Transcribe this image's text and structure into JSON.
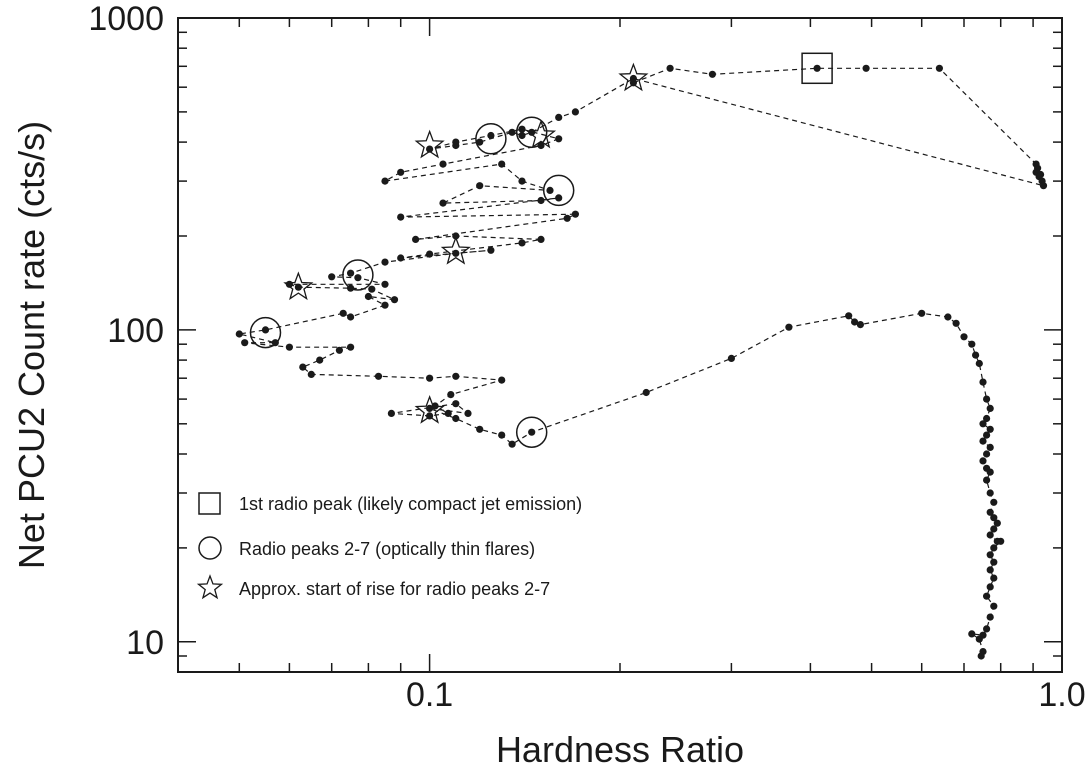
{
  "chart_data": {
    "type": "scatter",
    "xlabel": "Hardness Ratio",
    "ylabel": "Net PCU2 Count rate (cts/s)",
    "xscale": "log",
    "yscale": "log",
    "xlim": [
      0.04,
      1.0
    ],
    "ylim": [
      8,
      1000
    ],
    "x_ticks": [
      {
        "value": 0.1,
        "label": "0.1"
      },
      {
        "value": 1.0,
        "label": "1.0"
      }
    ],
    "y_ticks": [
      {
        "value": 10,
        "label": "10"
      },
      {
        "value": 100,
        "label": "100"
      },
      {
        "value": 1000,
        "label": "1000"
      }
    ],
    "legend_position": "bottom-left",
    "legend": [
      {
        "marker": "square",
        "label": "1st radio peak (likely compact jet emission)"
      },
      {
        "marker": "circle",
        "label": "Radio peaks 2-7 (optically thin flares)"
      },
      {
        "marker": "star",
        "label": "Approx. start of rise for radio peaks 2-7"
      }
    ],
    "colors": {
      "points": "#1a1a1a",
      "line": "#1a1a1a",
      "frame": "#1a1a1a"
    },
    "track": [
      [
        0.21,
        620
      ],
      [
        0.24,
        690
      ],
      [
        0.28,
        660
      ],
      [
        0.41,
        690
      ],
      [
        0.49,
        690
      ],
      [
        0.64,
        690
      ],
      [
        0.91,
        340
      ],
      [
        0.915,
        330
      ],
      [
        0.91,
        320
      ],
      [
        0.92,
        310
      ],
      [
        0.93,
        300
      ],
      [
        0.925,
        315
      ],
      [
        0.935,
        290
      ],
      [
        0.21,
        640
      ],
      [
        0.17,
        500
      ],
      [
        0.16,
        480
      ],
      [
        0.145,
        430
      ],
      [
        0.14,
        420
      ],
      [
        0.135,
        430
      ],
      [
        0.12,
        400
      ],
      [
        0.11,
        390
      ],
      [
        0.1,
        380
      ],
      [
        0.11,
        400
      ],
      [
        0.125,
        420
      ],
      [
        0.14,
        440
      ],
      [
        0.16,
        410
      ],
      [
        0.15,
        390
      ],
      [
        0.105,
        340
      ],
      [
        0.09,
        320
      ],
      [
        0.085,
        300
      ],
      [
        0.13,
        340
      ],
      [
        0.14,
        300
      ],
      [
        0.155,
        280
      ],
      [
        0.12,
        290
      ],
      [
        0.105,
        255
      ],
      [
        0.15,
        260
      ],
      [
        0.16,
        265
      ],
      [
        0.09,
        230
      ],
      [
        0.17,
        235
      ],
      [
        0.165,
        228
      ],
      [
        0.095,
        195
      ],
      [
        0.11,
        200
      ],
      [
        0.15,
        195
      ],
      [
        0.14,
        190
      ],
      [
        0.1,
        175
      ],
      [
        0.09,
        170
      ],
      [
        0.125,
        180
      ],
      [
        0.11,
        176
      ],
      [
        0.085,
        165
      ],
      [
        0.075,
        152
      ],
      [
        0.07,
        148
      ],
      [
        0.077,
        147
      ],
      [
        0.085,
        140
      ],
      [
        0.06,
        140
      ],
      [
        0.062,
        137
      ],
      [
        0.075,
        136
      ],
      [
        0.081,
        135
      ],
      [
        0.088,
        125
      ],
      [
        0.08,
        128
      ],
      [
        0.085,
        120
      ],
      [
        0.075,
        110
      ],
      [
        0.073,
        113
      ],
      [
        0.055,
        100
      ],
      [
        0.05,
        97
      ],
      [
        0.057,
        91
      ],
      [
        0.051,
        91
      ],
      [
        0.06,
        88
      ],
      [
        0.075,
        88
      ],
      [
        0.072,
        86
      ],
      [
        0.067,
        80
      ],
      [
        0.063,
        76
      ],
      [
        0.065,
        72
      ],
      [
        0.083,
        71
      ],
      [
        0.1,
        70
      ],
      [
        0.11,
        71
      ],
      [
        0.13,
        69
      ],
      [
        0.108,
        62
      ],
      [
        0.102,
        57
      ],
      [
        0.107,
        54
      ],
      [
        0.1,
        53
      ],
      [
        0.087,
        54
      ],
      [
        0.11,
        58
      ],
      [
        0.115,
        54
      ],
      [
        0.1,
        56
      ],
      [
        0.11,
        52
      ],
      [
        0.12,
        48
      ],
      [
        0.13,
        46
      ],
      [
        0.135,
        43
      ],
      [
        0.145,
        47
      ],
      [
        0.22,
        63
      ],
      [
        0.3,
        81
      ],
      [
        0.37,
        102
      ],
      [
        0.46,
        111
      ],
      [
        0.47,
        106
      ],
      [
        0.48,
        104
      ],
      [
        0.6,
        113
      ],
      [
        0.66,
        110
      ],
      [
        0.68,
        105
      ],
      [
        0.7,
        95
      ],
      [
        0.72,
        90
      ],
      [
        0.73,
        83
      ],
      [
        0.74,
        78
      ],
      [
        0.75,
        68
      ],
      [
        0.76,
        60
      ],
      [
        0.77,
        56
      ],
      [
        0.76,
        52
      ],
      [
        0.75,
        50
      ],
      [
        0.77,
        48
      ],
      [
        0.76,
        46
      ],
      [
        0.75,
        44
      ],
      [
        0.77,
        42
      ],
      [
        0.76,
        40
      ],
      [
        0.75,
        38
      ],
      [
        0.76,
        36
      ],
      [
        0.77,
        35
      ],
      [
        0.76,
        33
      ],
      [
        0.77,
        30
      ],
      [
        0.78,
        28
      ],
      [
        0.77,
        26
      ],
      [
        0.78,
        25
      ],
      [
        0.79,
        24
      ],
      [
        0.78,
        23
      ],
      [
        0.77,
        22
      ],
      [
        0.79,
        21
      ],
      [
        0.8,
        21
      ],
      [
        0.78,
        20
      ],
      [
        0.77,
        19
      ],
      [
        0.78,
        18
      ],
      [
        0.77,
        17
      ],
      [
        0.78,
        16
      ],
      [
        0.77,
        15
      ],
      [
        0.76,
        14
      ],
      [
        0.78,
        13
      ],
      [
        0.77,
        12
      ],
      [
        0.76,
        11
      ],
      [
        0.75,
        10.5
      ],
      [
        0.72,
        10.6
      ],
      [
        0.74,
        10.2
      ],
      [
        0.75,
        9.3
      ],
      [
        0.745,
        9.0
      ]
    ],
    "square_markers": [
      [
        0.41,
        690
      ]
    ],
    "circle_markers": [
      [
        0.125,
        410
      ],
      [
        0.145,
        430
      ],
      [
        0.16,
        280
      ],
      [
        0.077,
        150
      ],
      [
        0.055,
        98
      ],
      [
        0.145,
        47
      ]
    ],
    "star_markers": [
      [
        0.21,
        640
      ],
      [
        0.1,
        390
      ],
      [
        0.15,
        420
      ],
      [
        0.062,
        137
      ],
      [
        0.11,
        178
      ],
      [
        0.1,
        55
      ]
    ]
  }
}
